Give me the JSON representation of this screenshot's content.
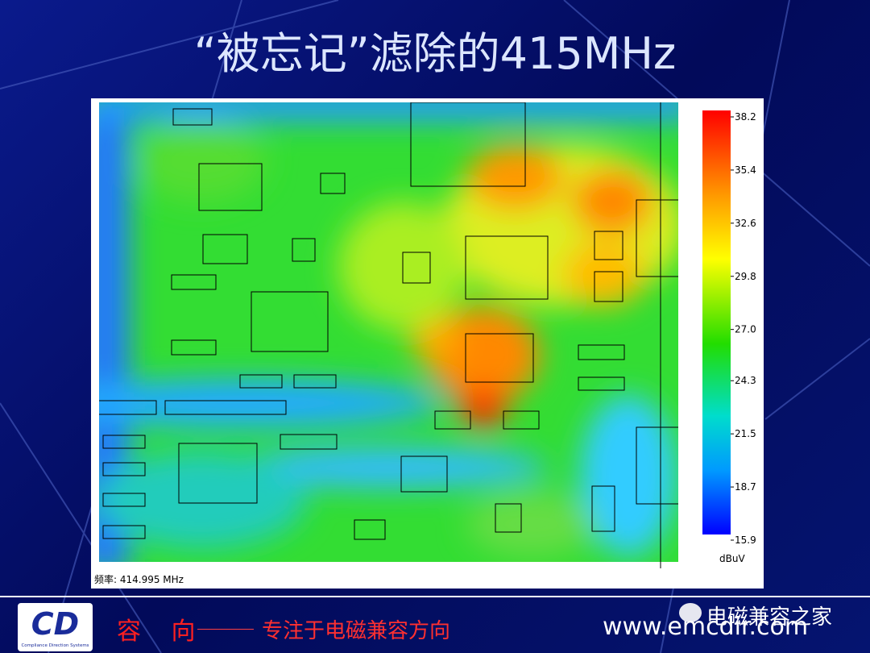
{
  "header": {
    "title": "“被忘记”滤除的415MHz"
  },
  "heatmap": {
    "frequency_label": "频率: 414.995 MHz",
    "colorbar": {
      "ticks": [
        38.2,
        35.4,
        32.6,
        29.8,
        {
          "value": 27,
          "label": "27.0"
        },
        24.3,
        21.5,
        18.7,
        15.9
      ],
      "unit": "dBuV"
    }
  },
  "footer": {
    "logo": {
      "mark": "CD",
      "caption": "Compliance Direction Systems"
    },
    "slogan_brand": "容 向",
    "slogan": "专注于电磁兼容方向",
    "website": "www.emcdir.com",
    "watermark": "电磁兼容之家"
  }
}
